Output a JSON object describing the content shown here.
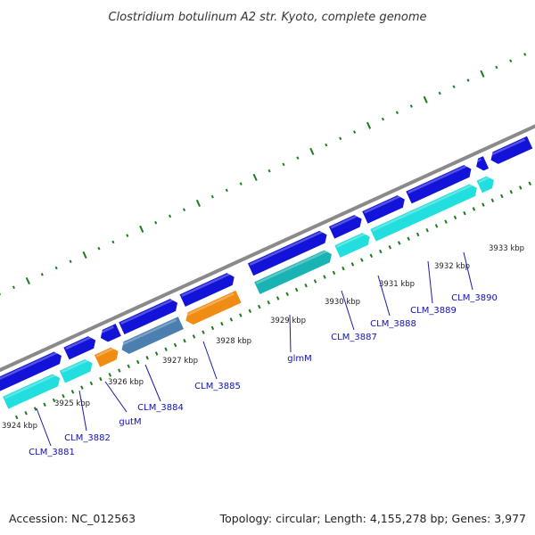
{
  "title": "Clostridium botulinum A2 str. Kyoto, complete genome",
  "footer": {
    "accession": "Accession: NC_012563",
    "stats": "Topology: circular; Length: 4,155,278 bp; Genes: 3,977"
  },
  "colors": {
    "backbone": "#8a8a8a",
    "forward_gene": "#1212d8",
    "reverse_gene": "#22dede",
    "reverse_gene_dark": "#19b3b3",
    "orange_gene": "#f08c14",
    "gray_gene": "#b4b4b4",
    "steel_gene": "#4a7fb0",
    "gc_ticks": "#1e7a1e",
    "label": "#1010b8",
    "leader": "#1a1aa8"
  },
  "kbp_labels": [
    "3924 kbp",
    "3925 kbp",
    "3926 kbp",
    "3927 kbp",
    "3928 kbp",
    "3929 kbp",
    "3930 kbp",
    "3931 kbp",
    "3932 kbp",
    "3933 kbp"
  ],
  "gene_labels": [
    "CLM_3881",
    "CLM_3882",
    "gutM",
    "CLM_3884",
    "CLM_3885",
    "glmM",
    "CLM_3887",
    "CLM_3888",
    "CLM_3889",
    "CLM_3890"
  ]
}
